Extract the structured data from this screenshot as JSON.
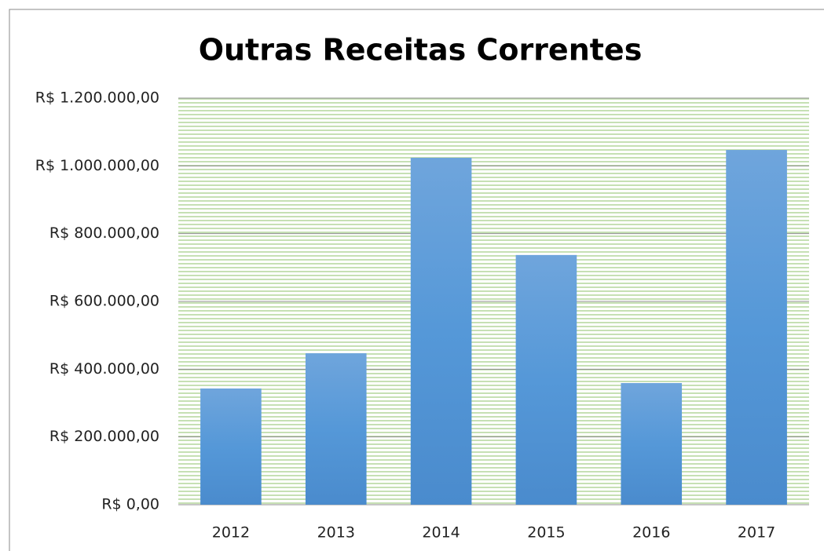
{
  "chart_data": {
    "type": "bar",
    "title": "Outras Receitas Correntes",
    "categories": [
      "2012",
      "2013",
      "2014",
      "2015",
      "2016",
      "2017"
    ],
    "values": [
      343000,
      447000,
      1024000,
      737000,
      359000,
      1047000
    ],
    "color": "#5b9bd5",
    "ylim": [
      0,
      1200000
    ],
    "yticks": [
      {
        "value": 0,
        "label": "R$ 0,00"
      },
      {
        "value": 200000,
        "label": "R$ 200.000,00"
      },
      {
        "value": 400000,
        "label": "R$ 400.000,00"
      },
      {
        "value": 600000,
        "label": "R$ 600.000,00"
      },
      {
        "value": 800000,
        "label": "R$ 800.000,00"
      },
      {
        "value": 1000000,
        "label": "R$ 1.000.000,00"
      },
      {
        "value": 1200000,
        "label": "R$ 1.200.000,00"
      }
    ],
    "grid": true
  }
}
